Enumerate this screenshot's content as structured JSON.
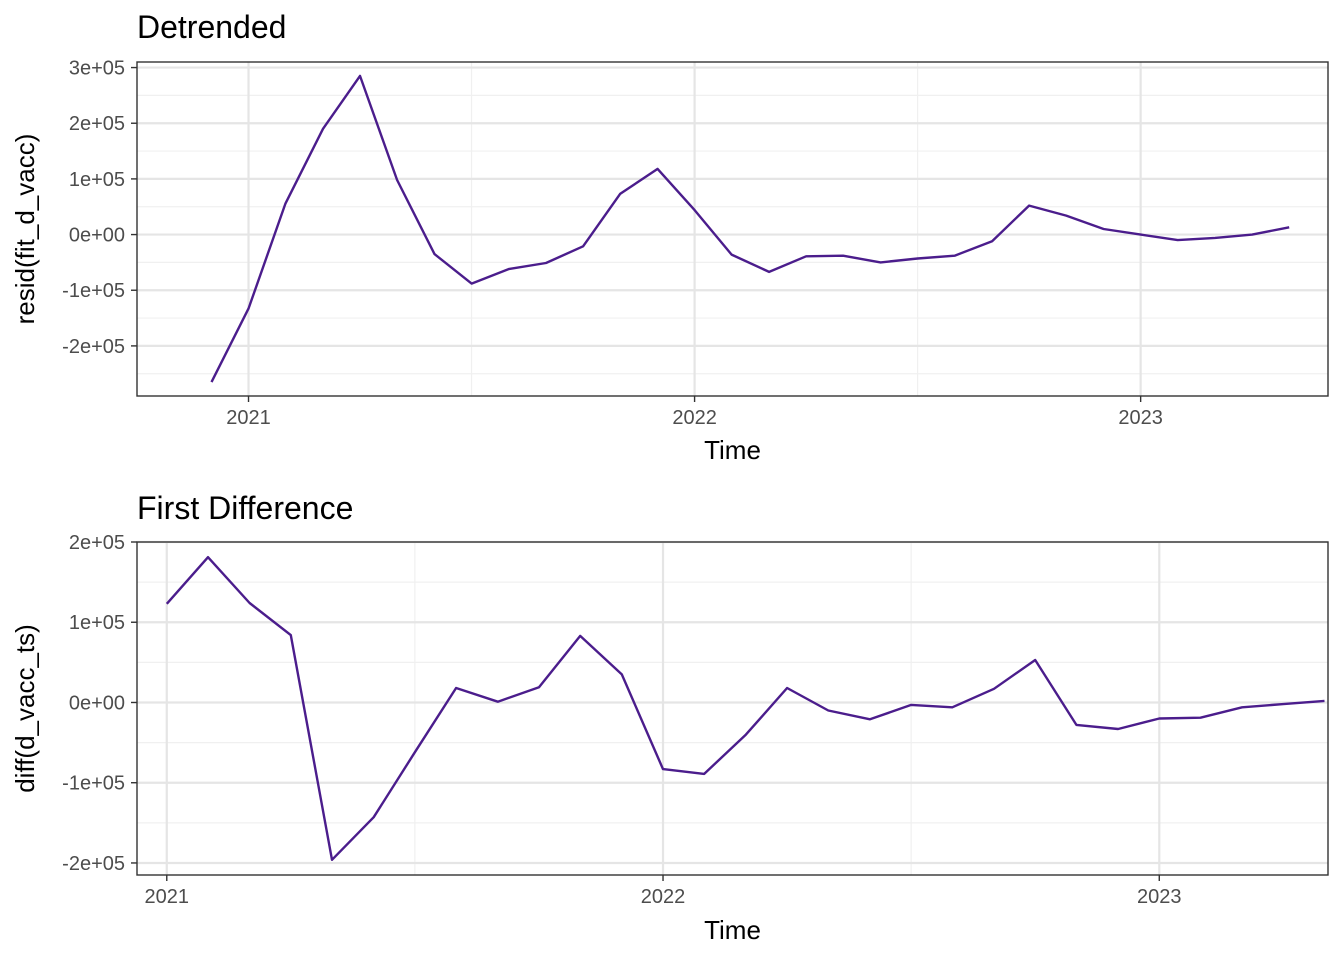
{
  "chart_data": [
    {
      "type": "line",
      "title": "Detrended",
      "xlabel": "Time",
      "ylabel": "resid(fit_d_vacc)",
      "color": "#4B1D8C",
      "x_ticks": [
        2021,
        2022,
        2023
      ],
      "y_ticks": [
        -200000,
        -100000,
        0,
        100000,
        200000,
        300000
      ],
      "y_tick_labels": [
        "-2e+05",
        "-1e+05",
        "0e+00",
        "1e+05",
        "2e+05",
        "3e+05"
      ],
      "xlim": [
        2020.75,
        2023.42
      ],
      "ylim": [
        -290000,
        310000
      ],
      "grid": true,
      "x": [
        2020.917,
        2021.0,
        2021.083,
        2021.167,
        2021.25,
        2021.333,
        2021.417,
        2021.5,
        2021.583,
        2021.667,
        2021.75,
        2021.833,
        2021.917,
        2022.0,
        2022.083,
        2022.167,
        2022.25,
        2022.333,
        2022.417,
        2022.5,
        2022.583,
        2022.667,
        2022.75,
        2022.833,
        2022.917,
        2023.0,
        2023.083,
        2023.167,
        2023.25,
        2023.333
      ],
      "values": [
        -265000,
        -133000,
        56000,
        190000,
        285000,
        98000,
        -35000,
        -88000,
        -62000,
        -51000,
        -21000,
        73000,
        118000,
        44000,
        -36000,
        -67000,
        -39000,
        -38000,
        -50000,
        -43000,
        -38000,
        -12000,
        52000,
        34000,
        10000,
        0,
        -10000,
        -6000,
        0,
        13000
      ]
    },
    {
      "type": "line",
      "title": "First Difference",
      "xlabel": "Time",
      "ylabel": "diff(d_vacc_ts)",
      "color": "#4B1D8C",
      "x_ticks": [
        2021,
        2022,
        2023
      ],
      "y_ticks": [
        -200000,
        -100000,
        0,
        100000,
        200000
      ],
      "y_tick_labels": [
        "-2e+05",
        "-1e+05",
        "0e+00",
        "1e+05",
        "2e+05"
      ],
      "xlim": [
        2020.94,
        2023.34
      ],
      "ylim": [
        -215000,
        200000
      ],
      "grid": true,
      "x": [
        2021.0,
        2021.083,
        2021.167,
        2021.25,
        2021.333,
        2021.417,
        2021.5,
        2021.583,
        2021.667,
        2021.75,
        2021.833,
        2021.917,
        2022.0,
        2022.083,
        2022.167,
        2022.25,
        2022.333,
        2022.417,
        2022.5,
        2022.583,
        2022.667,
        2022.75,
        2022.833,
        2022.917,
        2023.0,
        2023.083,
        2023.167,
        2023.25,
        2023.333
      ],
      "values": [
        123000,
        181000,
        124000,
        84000,
        -196000,
        -143000,
        -62000,
        18000,
        1000,
        19000,
        83000,
        35000,
        -83000,
        -89000,
        -40000,
        18000,
        -10000,
        -21000,
        -3000,
        -6000,
        17000,
        53000,
        -28000,
        -33000,
        -20000,
        -19000,
        -6000,
        -2000,
        2000
      ]
    }
  ]
}
